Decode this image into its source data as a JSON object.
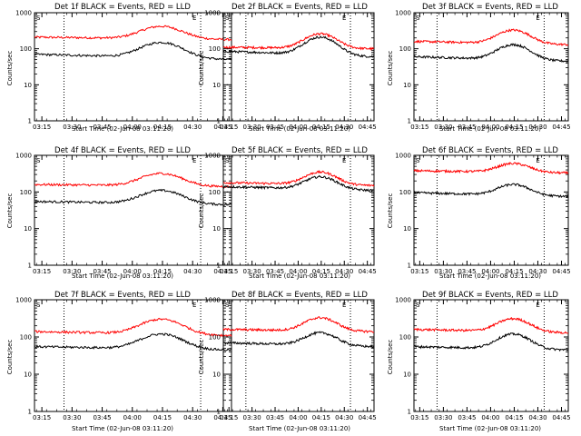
{
  "figure": {
    "x_tick_labels": [
      "03:15",
      "03:30",
      "03:45",
      "04:00",
      "04:15",
      "04:30",
      "04:45"
    ],
    "y_tick_labels": [
      "1",
      "10",
      "100",
      "1000"
    ],
    "xlabel": "Start Time (02-Jun-08 03:11:20)",
    "ylabel": "Counts/sec",
    "marker_s": "S",
    "marker_e": "E"
  },
  "chart_data": [
    {
      "type": "line",
      "title": "Det 1f BLACK = Events, RED = LLD",
      "xlabel": "Start Time (02-Jun-08 03:11:20)",
      "ylabel": "Counts/sec",
      "yscale": "log",
      "ylim": [
        1,
        1000
      ],
      "xlim_minutes": [
        0,
        98
      ],
      "x_tick_minutes": [
        3.67,
        18.67,
        33.67,
        48.67,
        63.67,
        78.67,
        93.67
      ],
      "vlines_minutes": [
        14.67,
        82.67
      ],
      "series": [
        {
          "name": "LLD",
          "color": "#ff0000",
          "base_start": 210,
          "base_end": 180,
          "peak": 420,
          "peak_minute": 63,
          "width": 9
        },
        {
          "name": "Events",
          "color": "#000000",
          "base_start": 70,
          "base_end": 50,
          "peak": 150,
          "peak_minute": 63,
          "width": 9
        }
      ]
    },
    {
      "type": "line",
      "title": "Det 2f BLACK = Events, RED = LLD",
      "xlabel": "Start Time (02-Jun-08 03:11:20)",
      "ylabel": "Counts/sec",
      "yscale": "log",
      "ylim": [
        1,
        1000
      ],
      "xlim_minutes": [
        0,
        98
      ],
      "x_tick_minutes": [
        3.67,
        18.67,
        33.67,
        48.67,
        63.67,
        78.67,
        93.67
      ],
      "vlines_minutes": [
        14.67,
        82.67
      ],
      "series": [
        {
          "name": "LLD",
          "color": "#ff0000",
          "base_start": 110,
          "base_end": 100,
          "peak": 260,
          "peak_minute": 63,
          "width": 9
        },
        {
          "name": "Events",
          "color": "#000000",
          "base_start": 85,
          "base_end": 60,
          "peak": 210,
          "peak_minute": 63,
          "width": 9
        }
      ]
    },
    {
      "type": "line",
      "title": "Det 3f BLACK = Events, RED = LLD",
      "xlabel": "Start Time (02-Jun-08 03:11:20)",
      "ylabel": "Counts/sec",
      "yscale": "log",
      "ylim": [
        1,
        1000
      ],
      "xlim_minutes": [
        0,
        98
      ],
      "x_tick_minutes": [
        3.67,
        18.67,
        33.67,
        48.67,
        63.67,
        78.67,
        93.67
      ],
      "vlines_minutes": [
        14.67,
        82.67
      ],
      "series": [
        {
          "name": "LLD",
          "color": "#ff0000",
          "base_start": 160,
          "base_end": 130,
          "peak": 330,
          "peak_minute": 63,
          "width": 9
        },
        {
          "name": "Events",
          "color": "#000000",
          "base_start": 60,
          "base_end": 45,
          "peak": 130,
          "peak_minute": 63,
          "width": 9
        }
      ]
    },
    {
      "type": "line",
      "title": "Det 4f BLACK = Events, RED = LLD",
      "xlabel": "Start Time (02-Jun-08 03:11:20)",
      "ylabel": "Counts/sec",
      "yscale": "log",
      "ylim": [
        1,
        1000
      ],
      "xlim_minutes": [
        0,
        98
      ],
      "x_tick_minutes": [
        3.67,
        18.67,
        33.67,
        48.67,
        63.67,
        78.67,
        93.67
      ],
      "vlines_minutes": [
        14.67,
        82.67
      ],
      "series": [
        {
          "name": "LLD",
          "color": "#ff0000",
          "base_start": 160,
          "base_end": 140,
          "peak": 320,
          "peak_minute": 63,
          "width": 9
        },
        {
          "name": "Events",
          "color": "#000000",
          "base_start": 55,
          "base_end": 45,
          "peak": 110,
          "peak_minute": 63,
          "width": 9
        }
      ]
    },
    {
      "type": "line",
      "title": "Det 5f BLACK = Events, RED = LLD",
      "xlabel": "Start Time (02-Jun-08 03:11:20)",
      "ylabel": "Counts/sec",
      "yscale": "log",
      "ylim": [
        1,
        1000
      ],
      "xlim_minutes": [
        0,
        98
      ],
      "x_tick_minutes": [
        3.67,
        18.67,
        33.67,
        48.67,
        63.67,
        78.67,
        93.67
      ],
      "vlines_minutes": [
        14.67,
        82.67
      ],
      "series": [
        {
          "name": "LLD",
          "color": "#ff0000",
          "base_start": 180,
          "base_end": 150,
          "peak": 350,
          "peak_minute": 63,
          "width": 9
        },
        {
          "name": "Events",
          "color": "#000000",
          "base_start": 140,
          "base_end": 110,
          "peak": 260,
          "peak_minute": 63,
          "width": 9
        }
      ]
    },
    {
      "type": "line",
      "title": "Det 6f BLACK = Events, RED = LLD",
      "xlabel": "Start Time (02-Jun-08 03:11:20)",
      "ylabel": "Counts/sec",
      "yscale": "log",
      "ylim": [
        1,
        1000
      ],
      "xlim_minutes": [
        0,
        98
      ],
      "x_tick_minutes": [
        3.67,
        18.67,
        33.67,
        48.67,
        63.67,
        78.67,
        93.67
      ],
      "vlines_minutes": [
        14.67,
        82.67
      ],
      "series": [
        {
          "name": "LLD",
          "color": "#ff0000",
          "base_start": 380,
          "base_end": 330,
          "peak": 600,
          "peak_minute": 63,
          "width": 9
        },
        {
          "name": "Events",
          "color": "#000000",
          "base_start": 95,
          "base_end": 75,
          "peak": 160,
          "peak_minute": 63,
          "width": 9
        }
      ]
    },
    {
      "type": "line",
      "title": "Det 7f BLACK = Events, RED = LLD",
      "xlabel": "Start Time (02-Jun-08 03:11:20)",
      "ylabel": "Counts/sec",
      "yscale": "log",
      "ylim": [
        1,
        1000
      ],
      "xlim_minutes": [
        0,
        98
      ],
      "x_tick_minutes": [
        3.67,
        18.67,
        33.67,
        48.67,
        63.67,
        78.67,
        93.67
      ],
      "vlines_minutes": [
        14.67,
        82.67
      ],
      "series": [
        {
          "name": "LLD",
          "color": "#ff0000",
          "base_start": 140,
          "base_end": 110,
          "peak": 300,
          "peak_minute": 63,
          "width": 9
        },
        {
          "name": "Events",
          "color": "#000000",
          "base_start": 55,
          "base_end": 45,
          "peak": 120,
          "peak_minute": 63,
          "width": 9
        }
      ]
    },
    {
      "type": "line",
      "title": "Det 8f BLACK = Events, RED = LLD",
      "xlabel": "Start Time (02-Jun-08 03:11:20)",
      "ylabel": "Counts/sec",
      "yscale": "log",
      "ylim": [
        1,
        1000
      ],
      "xlim_minutes": [
        0,
        98
      ],
      "x_tick_minutes": [
        3.67,
        18.67,
        33.67,
        48.67,
        63.67,
        78.67,
        93.67
      ],
      "vlines_minutes": [
        14.67,
        82.67
      ],
      "series": [
        {
          "name": "LLD",
          "color": "#ff0000",
          "base_start": 160,
          "base_end": 140,
          "peak": 330,
          "peak_minute": 63,
          "width": 9
        },
        {
          "name": "Events",
          "color": "#000000",
          "base_start": 70,
          "base_end": 55,
          "peak": 130,
          "peak_minute": 63,
          "width": 9
        }
      ]
    },
    {
      "type": "line",
      "title": "Det 9f BLACK = Events, RED = LLD",
      "xlabel": "Start Time (02-Jun-08 03:11:20)",
      "ylabel": "Counts/sec",
      "yscale": "log",
      "ylim": [
        1,
        1000
      ],
      "xlim_minutes": [
        0,
        98
      ],
      "x_tick_minutes": [
        3.67,
        18.67,
        33.67,
        48.67,
        63.67,
        78.67,
        93.67
      ],
      "vlines_minutes": [
        14.67,
        82.67
      ],
      "series": [
        {
          "name": "LLD",
          "color": "#ff0000",
          "base_start": 160,
          "base_end": 130,
          "peak": 310,
          "peak_minute": 63,
          "width": 9
        },
        {
          "name": "Events",
          "color": "#000000",
          "base_start": 55,
          "base_end": 45,
          "peak": 120,
          "peak_minute": 63,
          "width": 9
        }
      ]
    }
  ]
}
